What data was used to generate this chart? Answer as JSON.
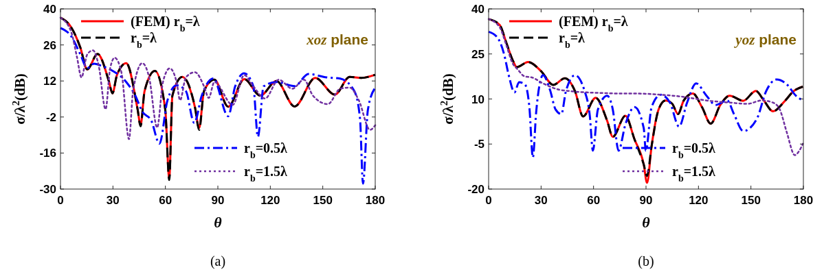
{
  "chart_data": [
    {
      "type": "line",
      "xlabel": "θ",
      "ylabel": "σ/λ$^{2}$(dB)",
      "xlim": [
        0,
        180
      ],
      "xticks": [
        0,
        30,
        60,
        90,
        120,
        150,
        180
      ],
      "ylim": [
        -30,
        40
      ],
      "yticks": [
        40,
        26,
        12,
        -2,
        -16,
        -30
      ],
      "grid": false,
      "legend": "top left",
      "annotations": [
        "xoz plane",
        "(a)"
      ],
      "series": [
        {
          "name": "(FEM) r$_{b}$=λ",
          "color": "#ff0000",
          "line_style": "solid",
          "x": [
            0,
            6.1,
            11.4,
            15.3,
            21.2,
            27.8,
            29.7,
            32.3,
            37.6,
            44.1,
            45.8,
            48.1,
            54,
            59.9,
            62.2,
            64,
            69.7,
            76.9,
            79.3,
            82.1,
            88,
            95.9,
            105.1,
            114.3,
            123.5,
            133.9,
            145.7,
            156.9,
            165.4,
            172,
            180
          ],
          "values": [
            36.6,
            32.9,
            24.9,
            16.5,
            22.5,
            11.6,
            7.2,
            14.3,
            18.9,
            1.0,
            -5.2,
            8.1,
            15.9,
            1.0,
            -25.7,
            6.3,
            13.6,
            1.8,
            -6.3,
            8.1,
            12.5,
            2.0,
            12.7,
            6.3,
            12.0,
            2.1,
            13.2,
            6.7,
            13.6,
            13.2,
            14.4
          ]
        },
        {
          "name": "r$_{b}$=λ",
          "color": "#000000",
          "line_style": "dashed",
          "x": [
            0,
            6.1,
            11.4,
            15.3,
            21.2,
            27.8,
            29.7,
            32.3,
            37.6,
            44.1,
            45.8,
            48.1,
            54,
            59.9,
            62.2,
            64,
            69.7,
            76.9,
            79.3,
            82.1,
            88,
            95.9,
            105.1,
            114.3,
            123.5,
            133.9,
            145.7,
            156.9,
            165.4,
            172,
            180
          ],
          "values": [
            36.6,
            32.9,
            24.9,
            16.5,
            22.5,
            11.6,
            7.2,
            14.3,
            18.9,
            1.0,
            -5.6,
            8.1,
            15.9,
            1.0,
            -26.5,
            6.3,
            13.6,
            1.8,
            -7.0,
            8.1,
            12.5,
            2.0,
            12.7,
            6.3,
            12.0,
            2.1,
            13.2,
            6.7,
            13.6,
            13.2,
            14.4
          ]
        },
        {
          "name": "r$_{b}$=0.5λ",
          "color": "#0000ff",
          "line_style": "dashdot",
          "x": [
            0,
            6.1,
            11.4,
            15.3,
            19.2,
            24.5,
            29.7,
            37.6,
            42.8,
            46.8,
            52,
            56.6,
            61.2,
            66.4,
            71.7,
            76.5,
            80.8,
            87.4,
            95.9,
            99.9,
            105.1,
            110.3,
            112.9,
            116.2,
            123.5,
            133.9,
            141.8,
            152.2,
            160,
            168,
            171.3,
            173,
            175.8,
            180
          ],
          "values": [
            32.6,
            29.4,
            22.3,
            17.0,
            18.7,
            17.6,
            16.0,
            11.6,
            6.3,
            0.1,
            -3.5,
            -12.4,
            4.5,
            10.3,
            8.1,
            -4.3,
            6.3,
            13.0,
            -1.7,
            9.9,
            15.0,
            9.9,
            -9.7,
            9.9,
            11.6,
            10.0,
            14.7,
            13.4,
            12.9,
            8.1,
            -2.6,
            -27.9,
            0.8,
            9.4
          ]
        },
        {
          "name": "r$_{b}$=1.5λ",
          "color": "#7030a0",
          "line_style": "dotted",
          "x": [
            0,
            6.1,
            9.4,
            12,
            15.3,
            18.6,
            21.9,
            25.8,
            28.4,
            31,
            34.9,
            39.2,
            41.5,
            46.8,
            50.7,
            55.3,
            58.6,
            62.5,
            66.4,
            68.4,
            71.7,
            76.9,
            82.1,
            84.8,
            88,
            98.5,
            105.1,
            110.3,
            117,
            124.8,
            132.6,
            139.2,
            144.4,
            152.9,
            160,
            165.4,
            170.6,
            177,
            180
          ],
          "values": [
            36.6,
            31.1,
            21.4,
            13.4,
            22.3,
            23.9,
            17.8,
            1.0,
            16.9,
            21.0,
            15.2,
            -10.6,
            8.1,
            18.9,
            13.4,
            -6.1,
            11.6,
            16.9,
            11.6,
            4.5,
            13.4,
            15.4,
            9.9,
            5.4,
            11.6,
            2.7,
            14.3,
            9.9,
            5.2,
            12.5,
            9.0,
            12.5,
            6.3,
            3.0,
            9.0,
            9.4,
            4.5,
            -7.0,
            -5.2
          ]
        }
      ]
    },
    {
      "type": "line",
      "xlabel": "θ",
      "ylabel": "σ/λ$^{2}$(dB)",
      "xlim": [
        0,
        180
      ],
      "xticks": [
        0,
        30,
        60,
        90,
        120,
        150,
        180
      ],
      "ylim": [
        -20,
        40
      ],
      "yticks": [
        40,
        25,
        10,
        -5,
        -20
      ],
      "grid": false,
      "legend": "top left",
      "annotations": [
        "yoz plane",
        "(b)"
      ],
      "series": [
        {
          "name": "(FEM) r$_{b}$=λ",
          "color": "#ff0000",
          "line_style": "solid",
          "x": [
            0,
            6.3,
            10.2,
            14.1,
            16.1,
            22.6,
            29.8,
            37,
            43.6,
            49.4,
            54,
            61.2,
            67.8,
            71,
            78.2,
            83.4,
            88.7,
            90.6,
            93.2,
            97.2,
            101.1,
            105,
            108.3,
            111.6,
            116.8,
            122,
            127,
            132.5,
            137.8,
            145.6,
            152.8,
            157.4,
            162.6,
            169.2,
            174.4,
            179.7
          ],
          "values": [
            36.6,
            34.7,
            28.6,
            22.5,
            20.6,
            22.3,
            19.4,
            14.7,
            16.9,
            12.6,
            4.2,
            10.4,
            2.7,
            -2.6,
            4.4,
            -3.4,
            -11.8,
            -17.9,
            -5.7,
            6.5,
            9.5,
            8.4,
            5.0,
            9.5,
            11.8,
            7.3,
            1.8,
            8.0,
            11.1,
            9.4,
            12.7,
            9.5,
            5.9,
            9.2,
            12.6,
            14.1
          ]
        },
        {
          "name": "r$_{b}$=λ",
          "color": "#000000",
          "line_style": "dashed",
          "x": [
            0,
            6.3,
            10.2,
            14.1,
            16.1,
            22.6,
            29.8,
            37,
            43.6,
            49.4,
            54,
            61.2,
            67.8,
            71,
            78.2,
            83.4,
            88.7,
            90.6,
            93.2,
            97.2,
            101.1,
            105,
            108.3,
            111.6,
            116.8,
            122,
            127,
            132.5,
            137.8,
            145.6,
            152.8,
            157.4,
            162.6,
            169.2,
            174.4,
            179.7
          ],
          "values": [
            36.6,
            34.7,
            28.6,
            22.5,
            20.6,
            22.3,
            19.4,
            14.7,
            16.9,
            12.6,
            4.2,
            10.4,
            2.7,
            -2.6,
            4.4,
            -3.4,
            -11.8,
            -15.6,
            -5.7,
            6.5,
            9.5,
            8.4,
            5.0,
            9.5,
            11.8,
            7.3,
            1.8,
            8.0,
            11.1,
            9.4,
            12.7,
            9.5,
            5.9,
            9.2,
            12.6,
            14.1
          ]
        },
        {
          "name": "r$_{b}$=0.5λ",
          "color": "#0000ff",
          "line_style": "dashdot",
          "x": [
            0,
            5,
            8.9,
            11.5,
            14.8,
            17.4,
            20.7,
            23.3,
            25.3,
            27.2,
            31.1,
            35.1,
            38.3,
            41.6,
            44.2,
            49.4,
            54.7,
            57.9,
            59.6,
            62.5,
            67.8,
            71,
            74.3,
            78.2,
            83.4,
            88.7,
            89.9,
            93.2,
            98.4,
            103.7,
            108.9,
            113.5,
            118.7,
            124.6,
            129.8,
            136.4,
            140.3,
            145.6,
            153.4,
            158.7,
            164.6,
            170.5,
            175.7,
            179.7
          ],
          "values": [
            32.4,
            30.5,
            24.8,
            17.9,
            12.2,
            15.6,
            14.9,
            7.3,
            -9.5,
            5.7,
            17.9,
            13.0,
            6.5,
            5.0,
            12.6,
            17.9,
            13.0,
            4.2,
            -7.2,
            6.5,
            11.1,
            6.5,
            -7.2,
            1.5,
            7.3,
            0.3,
            -7.2,
            7.3,
            11.4,
            8.8,
            0.8,
            8.8,
            15.2,
            11.1,
            8.0,
            9.5,
            5.0,
            -0.7,
            3.4,
            12.6,
            16.5,
            14.9,
            11.1,
            9.5
          ]
        },
        {
          "name": "r$_{b}$=1.5λ",
          "color": "#7030a0",
          "line_style": "dotted",
          "x": [
            0,
            6.3,
            10.2,
            13.5,
            16.7,
            20.7,
            24.6,
            31.1,
            39,
            46.8,
            56,
            65.1,
            75.6,
            85.4,
            98.4,
            111.6,
            124.6,
            137.8,
            148.2,
            156.1,
            162.6,
            166.5,
            170.5,
            175.1,
            177.7,
            179.7
          ],
          "values": [
            36.6,
            33.9,
            27.8,
            22.1,
            19.8,
            17.5,
            17.2,
            15.2,
            13.3,
            12.6,
            12.2,
            12.0,
            11.8,
            11.8,
            11.4,
            10.7,
            9.5,
            8.8,
            8.4,
            9.5,
            8.8,
            6.5,
            -1.1,
            -8.7,
            -7.2,
            -4.9
          ]
        }
      ]
    }
  ]
}
